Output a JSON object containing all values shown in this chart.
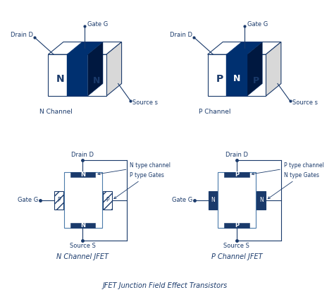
{
  "dark_blue": "#1a3a6b",
  "navy": "#003070",
  "border_blue": "#4a7aaa",
  "text_color": "#1a3a6b",
  "title": "JFET Junction Field Effect Transistors",
  "n_channel_label": "N Channel JFET",
  "p_channel_label": "P Channel JFET",
  "top_left_channel": "N Channel",
  "top_right_channel": "P Channel"
}
